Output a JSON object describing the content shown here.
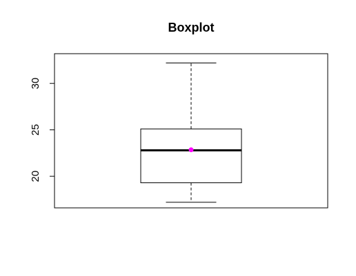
{
  "chart_data": {
    "type": "boxplot",
    "title": "Boxplot",
    "xlabel": "",
    "ylabel": "",
    "ylim": [
      16.6,
      33.2
    ],
    "yticks": [
      20,
      25,
      30
    ],
    "ytick_labels": [
      "20",
      "25",
      "30"
    ],
    "box": {
      "min": 17.2,
      "q1": 19.3,
      "median": 22.8,
      "q3": 25.1,
      "max": 32.2,
      "mean": 22.85
    },
    "colors": {
      "box_stroke": "#000000",
      "mean_marker": "#ff00ff"
    }
  }
}
